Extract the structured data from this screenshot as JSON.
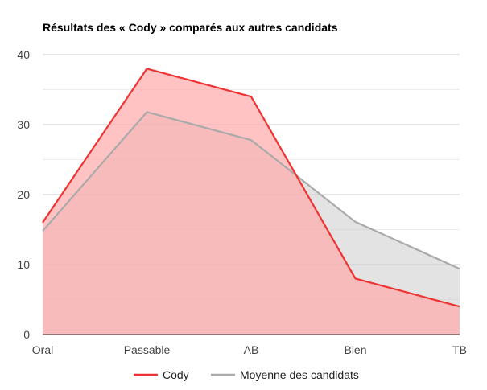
{
  "chart_data": {
    "type": "area",
    "title": "Résultats des « Cody » comparés aux autres candidats",
    "xlabel": "",
    "ylabel": "",
    "categories": [
      "Oral",
      "Passable",
      "AB",
      "Bien",
      "TB"
    ],
    "ylim": [
      0,
      40
    ],
    "yticks": [
      0,
      10,
      20,
      30,
      40
    ],
    "grid": true,
    "legend_position": "bottom",
    "series": [
      {
        "name": "Cody",
        "values": [
          16,
          38,
          34,
          8,
          4
        ],
        "line_color": "#ee3333",
        "fill_color": "#ffaaaa"
      },
      {
        "name": "Moyenne des candidats",
        "values": [
          14.8,
          31.8,
          27.8,
          16.1,
          9.4
        ],
        "line_color": "#aaaaaa",
        "fill_color": "#cccccc"
      }
    ]
  }
}
